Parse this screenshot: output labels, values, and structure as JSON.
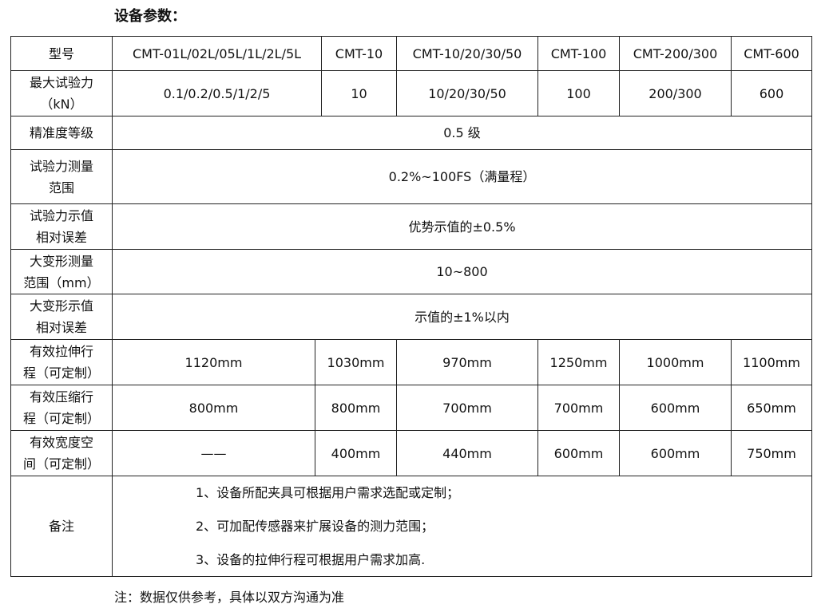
{
  "title": "设备参数：",
  "table": {
    "header": {
      "label": "型号",
      "models": [
        "CMT-01L/02L/05L/1L/2L/5L",
        "CMT-10",
        "CMT-10/20/30/50",
        "CMT-100",
        "CMT-200/300",
        "CMT-600"
      ]
    },
    "max_force": {
      "label": "最大试验力\n（kN）",
      "values": [
        "0.1/0.2/0.5/1/2/5",
        "10",
        "10/20/30/50",
        "100",
        "200/300",
        "600"
      ]
    },
    "accuracy": {
      "label": "精准度等级",
      "value": "0.5 级"
    },
    "force_range": {
      "label": "试验力测量\n范围",
      "value": "0.2%~100FS（满量程）"
    },
    "force_error": {
      "label": "试验力示值\n相对误差",
      "value": "优势示值的±0.5%"
    },
    "deform_range": {
      "label": "大变形测量\n范围（mm）",
      "value": "10~800"
    },
    "deform_error": {
      "label": "大变形示值\n相对误差",
      "value": "示值的±1%以内"
    },
    "stroke_tension": {
      "label": "有效拉伸行\n程（可定制）",
      "values": [
        "1120mm",
        "1030mm",
        "970mm",
        "1250mm",
        "1000mm",
        "1100mm"
      ]
    },
    "stroke_compression": {
      "label": "有效压缩行\n程（可定制）",
      "values": [
        "800mm",
        "800mm",
        "700mm",
        "700mm",
        "600mm",
        "650mm"
      ]
    },
    "width_space": {
      "label": "有效宽度空\n间（可定制）",
      "values": [
        "——",
        "400mm",
        "440mm",
        "600mm",
        "600mm",
        "750mm"
      ]
    },
    "remarks": {
      "label": "备注",
      "items": [
        "1、设备所配夹具可根据用户需求选配或定制；",
        "2、可加配传感器来扩展设备的测力范围；",
        "3、设备的拉伸行程可根据用户需求加高."
      ]
    }
  },
  "footnote": "注：数据仅供参考，具体以双方沟通为准"
}
